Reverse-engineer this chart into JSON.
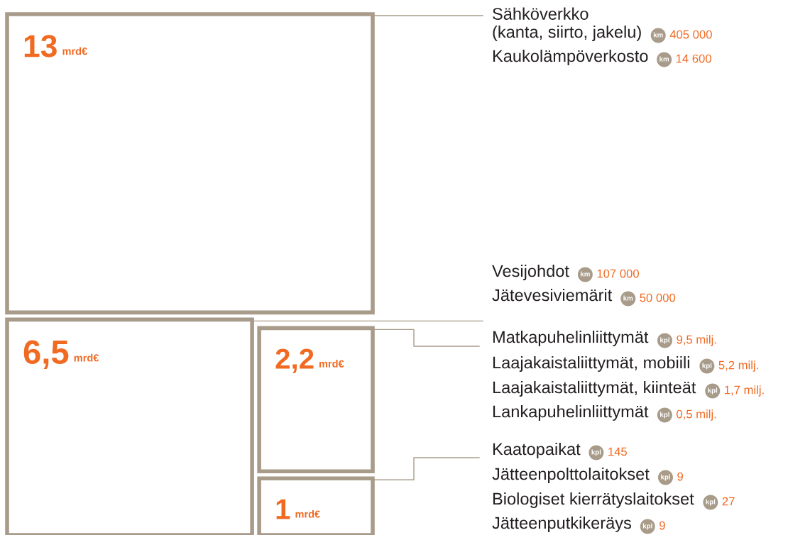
{
  "chart_data": {
    "type": "other",
    "values": [
      13,
      6.5,
      2.2,
      1
    ],
    "value_labels": [
      "13",
      "6,5",
      "2,2",
      "1"
    ],
    "colors": [
      "#a89b89",
      "#a89b89",
      "#a89b89",
      "#a89b89"
    ],
    "annotations": [
      "mrd€",
      "mrd€",
      "mrd€",
      "mrd€",
      "Sähköverkko\n(kanta, siirto, jakelu)",
      "km",
      "405 000",
      "Kaukolämpöverkosto",
      "km",
      "14 600",
      "Vesijohdot",
      "km",
      "107 000",
      "Jätevesiviemärit",
      "km",
      "50 000",
      "Matkapuhelinliittymät",
      "kpl",
      "9,5 milj.",
      "Laajakaistaliittymät, mobiili",
      "kpl",
      "5,2 milj.",
      "Laajakaistaliittymät, kiinteät",
      "kpl",
      "1,7 milj.",
      "Lankapuhelinliittymät",
      "kpl",
      "0,5 milj.",
      "Kaatopaikat",
      "kpl",
      "145",
      "Jätteenpolttolaitokset",
      "kpl",
      "9",
      "Biologiset kierrätyslaitokset",
      "kpl",
      "27",
      "Jätteenputkikeräys",
      "kpl",
      "9"
    ]
  }
}
